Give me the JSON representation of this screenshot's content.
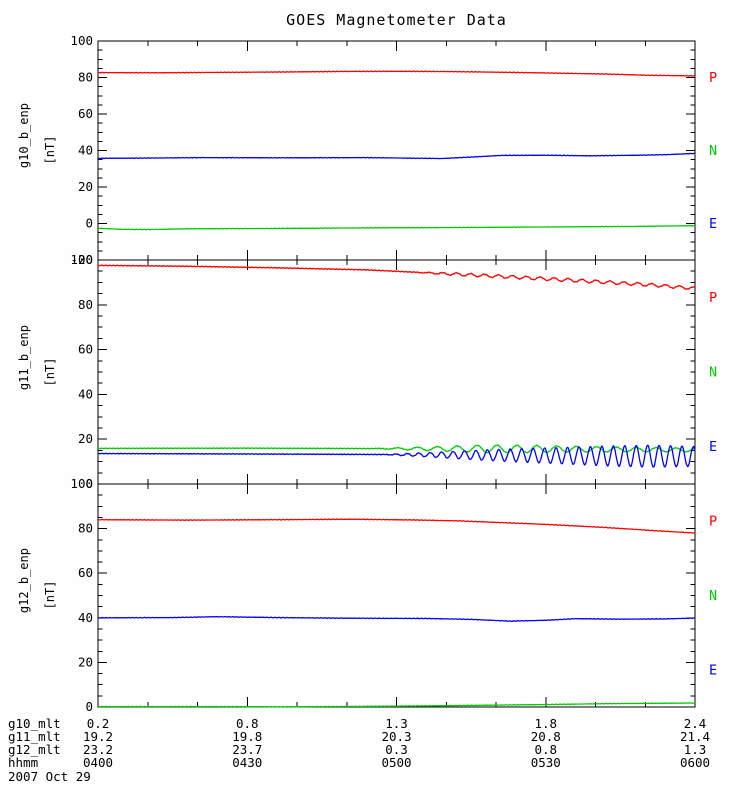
{
  "title": "GOES Magnetometer Data",
  "colors": {
    "red": "#ff0000",
    "green": "#00cc00",
    "blue": "#0000ff",
    "axis": "#000000",
    "text": "#000000",
    "background": "#fefefe"
  },
  "chart_data": {
    "type": "line",
    "title": "GOES Magnetometer Data",
    "date": "2007 Oct 29",
    "x_axis": {
      "unit": "hhmm",
      "start_hour": 4.0,
      "end_hour": 6.0,
      "major_ticks": [
        "0400",
        "0430",
        "0500",
        "0530",
        "0600"
      ],
      "major_tick_minutes": 30,
      "minor_tick_minutes": 10
    },
    "legend": [
      {
        "label": "P",
        "color": "red"
      },
      {
        "label": "N",
        "color": "green"
      },
      {
        "label": "E",
        "color": "blue"
      }
    ],
    "panels": [
      {
        "id": "g10",
        "ylabel": "g10_b_enp",
        "units": "[nT]",
        "ylim": [
          -20,
          100
        ],
        "ytick_major": 20,
        "ytick_minor": 5,
        "series": [
          {
            "name": "P",
            "color": "red",
            "noise": 0.18,
            "points": [
              [
                4.0,
                82.7
              ],
              [
                4.2,
                82.6
              ],
              [
                4.4,
                82.8
              ],
              [
                4.6,
                83.0
              ],
              [
                4.8,
                83.3
              ],
              [
                5.0,
                83.4
              ],
              [
                5.15,
                83.3
              ],
              [
                5.3,
                83.0
              ],
              [
                5.5,
                82.5
              ],
              [
                5.7,
                81.9
              ],
              [
                5.85,
                81.2
              ],
              [
                6.0,
                80.9
              ]
            ]
          },
          {
            "name": "N",
            "color": "blue",
            "noise": 0.15,
            "points": [
              [
                4.0,
                35.7
              ],
              [
                4.2,
                35.9
              ],
              [
                4.35,
                36.1
              ],
              [
                4.6,
                36.0
              ],
              [
                4.9,
                36.1
              ],
              [
                5.05,
                35.8
              ],
              [
                5.15,
                35.6
              ],
              [
                5.25,
                36.4
              ],
              [
                5.35,
                37.3
              ],
              [
                5.5,
                37.4
              ],
              [
                5.65,
                37.1
              ],
              [
                5.8,
                37.4
              ],
              [
                5.9,
                37.7
              ],
              [
                6.0,
                38.4
              ]
            ]
          },
          {
            "name": "E",
            "color": "green",
            "noise": 0.12,
            "points": [
              [
                4.0,
                -2.6
              ],
              [
                4.08,
                -3.2
              ],
              [
                4.18,
                -3.3
              ],
              [
                4.3,
                -2.9
              ],
              [
                4.6,
                -2.7
              ],
              [
                4.9,
                -2.4
              ],
              [
                5.2,
                -2.2
              ],
              [
                5.5,
                -1.9
              ],
              [
                5.8,
                -1.6
              ],
              [
                6.0,
                -1.2
              ]
            ]
          }
        ]
      },
      {
        "id": "g11",
        "ylabel": "g11_b_enp",
        "units": "[nT]",
        "ylim": [
          0,
          100
        ],
        "ytick_major": 20,
        "ytick_minor": 5,
        "series": [
          {
            "name": "P",
            "color": "red",
            "noise": 0.18,
            "points": [
              [
                4.0,
                97.6
              ],
              [
                4.3,
                97.2
              ],
              [
                4.6,
                96.5
              ],
              [
                4.9,
                95.6
              ],
              [
                5.1,
                94.3
              ],
              [
                5.3,
                93.0
              ],
              [
                5.5,
                91.6
              ],
              [
                5.7,
                90.1
              ],
              [
                5.85,
                88.9
              ],
              [
                6.0,
                87.3
              ]
            ],
            "osc": {
              "start": 5.05,
              "period_min": 2.8,
              "amp": [
                [
                  5.05,
                  0
                ],
                [
                  5.2,
                  0.6
                ],
                [
                  5.6,
                  0.7
                ],
                [
                  6.0,
                  0.6
                ]
              ]
            }
          },
          {
            "name": "N",
            "color": "green",
            "noise": 0.15,
            "points": [
              [
                4.0,
                15.9
              ],
              [
                4.5,
                16.0
              ],
              [
                5.0,
                15.8
              ],
              [
                5.5,
                15.6
              ],
              [
                6.0,
                15.2
              ]
            ],
            "osc": {
              "start": 4.92,
              "period_min": 4.0,
              "amp": [
                [
                  4.92,
                  0
                ],
                [
                  5.1,
                  0.8
                ],
                [
                  5.3,
                  1.7
                ],
                [
                  5.45,
                  1.6
                ],
                [
                  5.7,
                  1.1
                ],
                [
                  6.0,
                  0.8
                ]
              ]
            }
          },
          {
            "name": "E",
            "color": "blue",
            "noise": 0.15,
            "points": [
              [
                4.0,
                13.6
              ],
              [
                4.5,
                13.4
              ],
              [
                4.9,
                13.2
              ],
              [
                5.3,
                12.9
              ],
              [
                5.6,
                12.6
              ],
              [
                6.0,
                12.3
              ]
            ],
            "osc": {
              "start": 4.95,
              "period_min": 2.3,
              "amp": [
                [
                  4.95,
                  0
                ],
                [
                  5.1,
                  0.9
                ],
                [
                  5.3,
                  2.3
                ],
                [
                  5.5,
                  3.3
                ],
                [
                  5.7,
                  4.3
                ],
                [
                  5.85,
                  4.9
                ],
                [
                  6.0,
                  4.4
                ]
              ]
            }
          }
        ]
      },
      {
        "id": "g12",
        "ylabel": "g12_b_enp",
        "units": "[nT]",
        "ylim": [
          0,
          100
        ],
        "ytick_major": 20,
        "ytick_minor": 5,
        "series": [
          {
            "name": "P",
            "color": "red",
            "noise": 0.15,
            "points": [
              [
                4.0,
                84.0
              ],
              [
                4.3,
                83.8
              ],
              [
                4.6,
                84.0
              ],
              [
                4.85,
                84.2
              ],
              [
                5.05,
                83.9
              ],
              [
                5.2,
                83.5
              ],
              [
                5.35,
                82.7
              ],
              [
                5.5,
                81.9
              ],
              [
                5.7,
                80.5
              ],
              [
                5.85,
                79.2
              ],
              [
                6.0,
                78.0
              ]
            ]
          },
          {
            "name": "N",
            "color": "blue",
            "noise": 0.15,
            "points": [
              [
                4.0,
                40.0
              ],
              [
                4.25,
                40.1
              ],
              [
                4.4,
                40.5
              ],
              [
                4.6,
                40.1
              ],
              [
                4.85,
                39.8
              ],
              [
                5.1,
                39.7
              ],
              [
                5.25,
                39.3
              ],
              [
                5.38,
                38.5
              ],
              [
                5.5,
                38.9
              ],
              [
                5.6,
                39.6
              ],
              [
                5.75,
                39.4
              ],
              [
                5.9,
                39.5
              ],
              [
                6.0,
                39.9
              ]
            ]
          },
          {
            "name": "E",
            "color": "green",
            "noise": 0.1,
            "points": [
              [
                4.0,
                0.2
              ],
              [
                4.4,
                0.2
              ],
              [
                4.6,
                0.1
              ],
              [
                4.9,
                0.3
              ],
              [
                5.1,
                0.5
              ],
              [
                5.3,
                0.8
              ],
              [
                5.5,
                1.1
              ],
              [
                5.7,
                1.5
              ],
              [
                5.9,
                1.7
              ],
              [
                6.0,
                1.8
              ]
            ]
          }
        ]
      }
    ],
    "bottom_axis": {
      "rows": [
        {
          "label": "g10_mlt",
          "values": [
            "0.2",
            "0.8",
            "1.3",
            "1.8",
            "2.4"
          ]
        },
        {
          "label": "g11_mlt",
          "values": [
            "19.2",
            "19.8",
            "20.3",
            "20.8",
            "21.4"
          ]
        },
        {
          "label": "g12_mlt",
          "values": [
            "23.2",
            "23.7",
            "0.3",
            "0.8",
            "1.3"
          ]
        },
        {
          "label": "hhmm",
          "values": [
            "0400",
            "0430",
            "0500",
            "0530",
            "0600"
          ]
        }
      ],
      "date": "2007 Oct 29"
    }
  }
}
